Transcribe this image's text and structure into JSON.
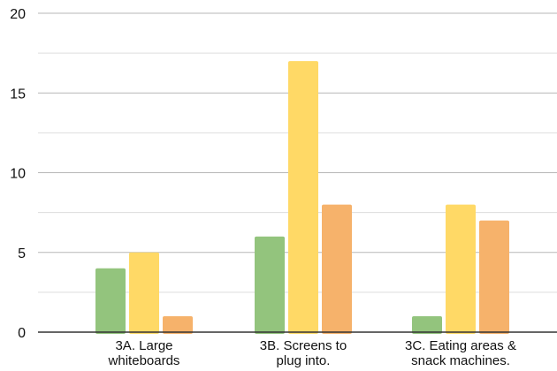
{
  "chart_data": {
    "type": "bar",
    "title": "",
    "xlabel": "",
    "ylabel": "",
    "categories": [
      [
        "3A. Large",
        "whiteboards"
      ],
      [
        "3B. Screens to",
        "plug into."
      ],
      [
        "3C. Eating areas &",
        "snack machines."
      ]
    ],
    "series": [
      {
        "color": "#93c47d",
        "values": [
          4,
          6,
          1
        ]
      },
      {
        "color": "#ffd966",
        "values": [
          5,
          17,
          8
        ]
      },
      {
        "color": "#f6b26b",
        "values": [
          1,
          8,
          7
        ]
      }
    ],
    "ylim": [
      0,
      20
    ],
    "yticks": [
      0,
      5,
      10,
      15,
      20
    ],
    "grid": true,
    "minor_grid_lines": [
      2.5,
      7.5,
      12.5,
      17.5
    ],
    "legend": "none",
    "colors": {
      "major_grid": "#b7b7b7",
      "minor_grid": "#dddddd",
      "axis": "#333333",
      "text": "#111111"
    }
  }
}
